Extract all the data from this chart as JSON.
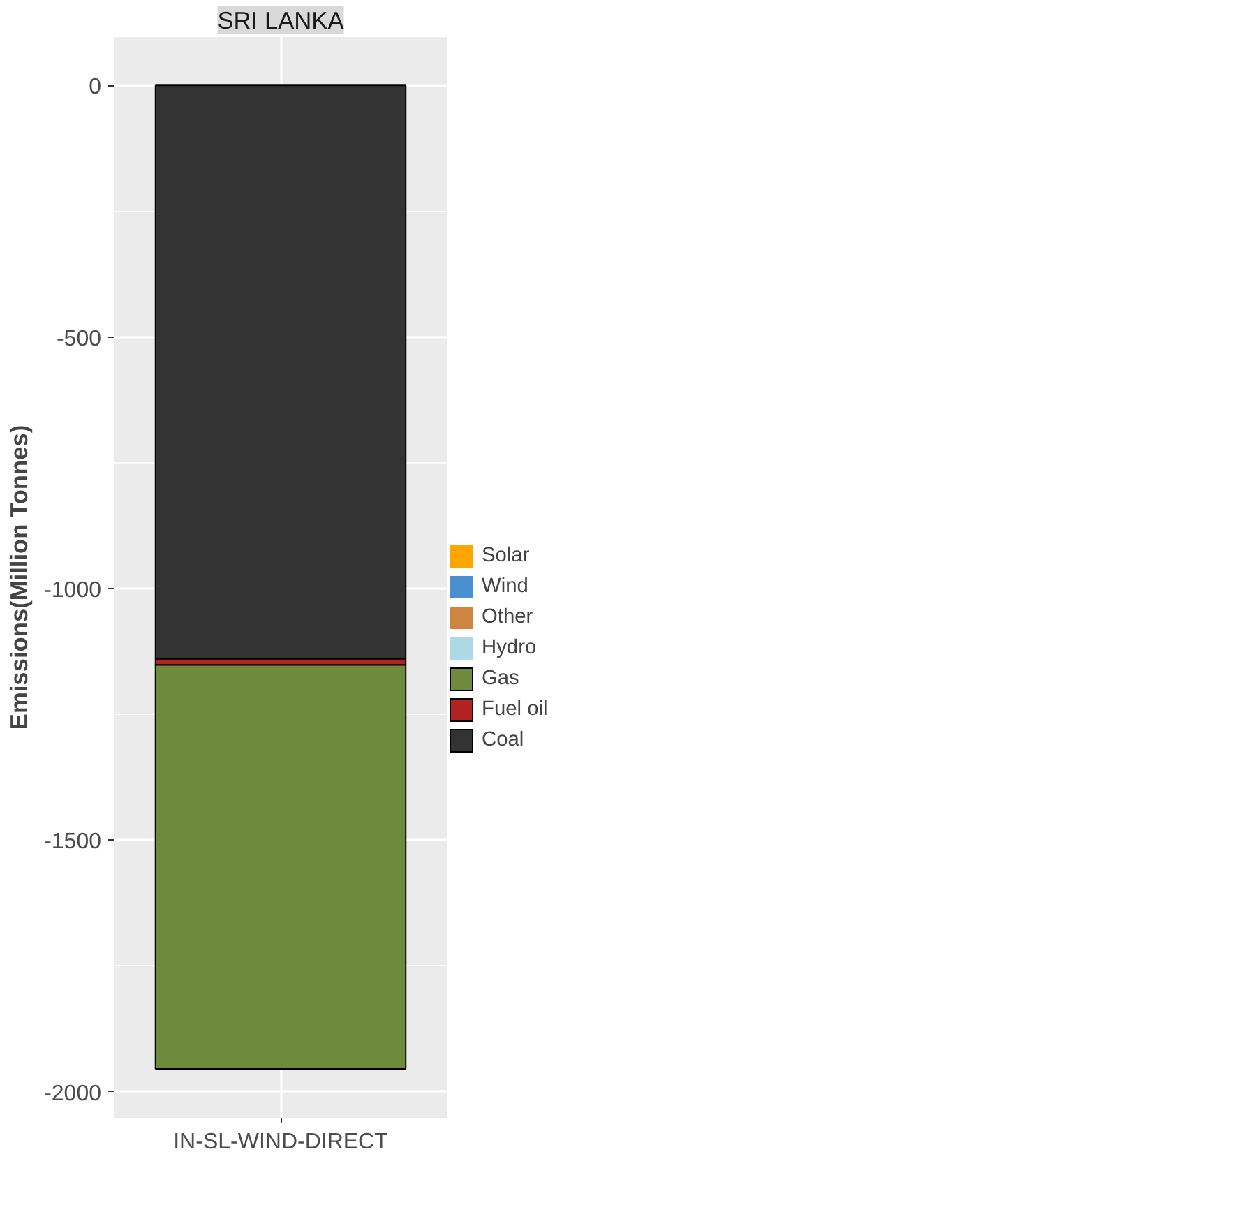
{
  "chart_data": {
    "type": "bar",
    "stacked": true,
    "title": "SRI LANKA",
    "ylabel": "Emissions(Million Tonnes)",
    "categories": [
      "IN-SL-WIND-DIRECT"
    ],
    "series": [
      {
        "name": "Coal",
        "color": "#333333",
        "values": [
          -1140
        ]
      },
      {
        "name": "Fuel oil",
        "color": "#b22222",
        "values": [
          -12
        ]
      },
      {
        "name": "Gas",
        "color": "#6e8b3d",
        "values": [
          -803
        ]
      },
      {
        "name": "Hydro",
        "color": "#add8e6",
        "values": [
          0
        ]
      },
      {
        "name": "Other",
        "color": "#cd853f",
        "values": [
          0
        ]
      },
      {
        "name": "Wind",
        "color": "#4a90d0",
        "values": [
          0
        ]
      },
      {
        "name": "Solar",
        "color": "#ffa500",
        "values": [
          0
        ]
      }
    ],
    "ylim": [
      -2052,
      96
    ],
    "yticks": [
      0,
      -500,
      -1000,
      -1500,
      -2000
    ],
    "grid": true,
    "legend": "right"
  }
}
